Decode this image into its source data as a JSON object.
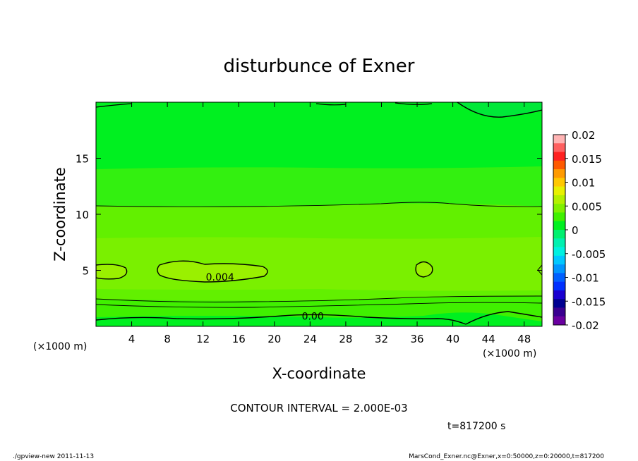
{
  "chart_data": {
    "type": "contour",
    "title": "disturbunce of Exner",
    "xlabel": "X-coordinate",
    "ylabel": "Z-coordinate",
    "x_unit_left": "(×1000 m)",
    "x_unit_right": "(×1000 m)",
    "xlim": [
      0,
      50
    ],
    "ylim": [
      0,
      20
    ],
    "x_ticks": [
      4,
      8,
      12,
      16,
      20,
      24,
      28,
      32,
      36,
      40,
      44,
      48
    ],
    "y_ticks": [
      5,
      10,
      15
    ],
    "contour_labels": [
      {
        "text": "0.004",
        "x": 13.9,
        "z": 4.4
      },
      {
        "text": "0.00",
        "x": 24.3,
        "z": 0.9
      }
    ],
    "contour_interval_text": "CONTOUR INTERVAL = 2.000E-03",
    "time_text": "t=817200 s",
    "colorbar": {
      "ticks": [
        "0.02",
        "0.015",
        "0.01",
        "0.005",
        "0",
        "-0.005",
        "-0.01",
        "-0.015",
        "-0.02"
      ],
      "colors": [
        "#ffb4b4",
        "#ff6060",
        "#ff2020",
        "#ff5a00",
        "#ff9a00",
        "#ffc800",
        "#e8f000",
        "#b4f000",
        "#80f000",
        "#40f000",
        "#00f020",
        "#00f070",
        "#00f0b0",
        "#00f0e0",
        "#00c8ff",
        "#0096ff",
        "#0060ff",
        "#0030ff",
        "#1a00d0",
        "#000090",
        "#3a0090",
        "#6a00a0"
      ]
    }
  },
  "footer": {
    "left": "./gpview-new   2011-11-13",
    "right": "MarsCond_Exner.nc@Exner,x=0:50000,z=0:20000,t=817200"
  }
}
